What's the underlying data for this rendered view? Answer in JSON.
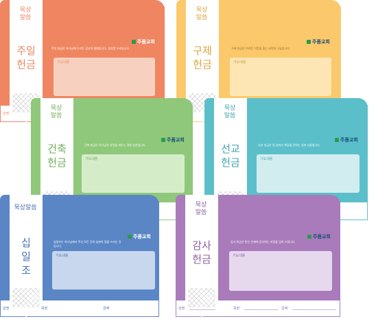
{
  "church": "주품교회",
  "envelopes": [
    {
      "id": "sunday",
      "color": "#ef8661",
      "light": "#f8d0bf",
      "tag": "묵상\n말씀",
      "title": "주일\n헌금",
      "text_color": "#e06e48",
      "box_label": "기도내용",
      "fine": "주일 헌금은 하나님께 드리는 감사의 예배입니다. 정성껏 드리십시오."
    },
    {
      "id": "relief",
      "color": "#fbc96b",
      "light": "#fde6b4",
      "tag": "묵상\n말씀",
      "title": "구제\n헌금",
      "text_color": "#d9a43e",
      "box_label": "기도내용",
      "fine": "구제 헌금은 어려운 이웃을 돕는 사랑의 나눔입니다."
    },
    {
      "id": "building",
      "color": "#8fc87a",
      "light": "#d5ecc9",
      "tag": "묵상\n말씀",
      "title": "건축\n헌금",
      "text_color": "#6fae5a",
      "box_label": "기도내용",
      "fine": "건축 헌금은 하나님의 성전을 세우는 귀한 헌신입니다."
    },
    {
      "id": "mission",
      "color": "#5bbfc9",
      "light": "#d2edf0",
      "tag": "묵상\n말씀",
      "title": "선교\n헌금",
      "text_color": "#3fa4b0",
      "box_label": "기도내용",
      "fine": "선교 헌금은 땅 끝까지 복음을 전하는 일에 사용됩니다."
    },
    {
      "id": "tithe",
      "color": "#5b86c6",
      "light": "#c9d7ee",
      "tag": "묵상말씀",
      "title": "십\n일\n조",
      "text_color": "#4a72b0",
      "box_label": "기도내용",
      "fine": "십일조는 하나님께서 주신 모든 것의 십분의 일을 드리는 것입니다."
    },
    {
      "id": "thanks",
      "color": "#a97bbb",
      "light": "#e6d9ee",
      "tag": "묵상\n말씀",
      "title": "감사\n헌금",
      "text_color": "#8d5fa2",
      "box_label": "기도내용",
      "fine": "감사 헌금은 받은 은혜에 감사하는 마음을 담아 드립니다."
    }
  ],
  "footer": {
    "name": "성명",
    "district": "목장",
    "amount": "금액"
  }
}
